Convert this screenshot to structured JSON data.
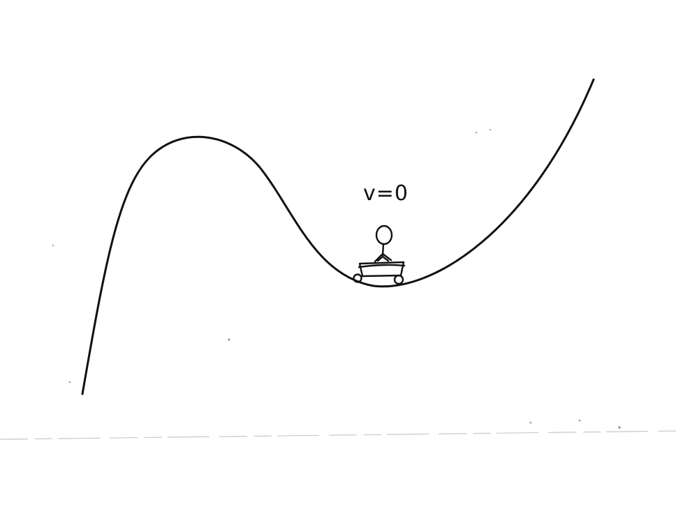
{
  "annotation": {
    "velocity_label": "v=0"
  },
  "colors": {
    "ink": "#111111",
    "paper": "#ffffff"
  }
}
